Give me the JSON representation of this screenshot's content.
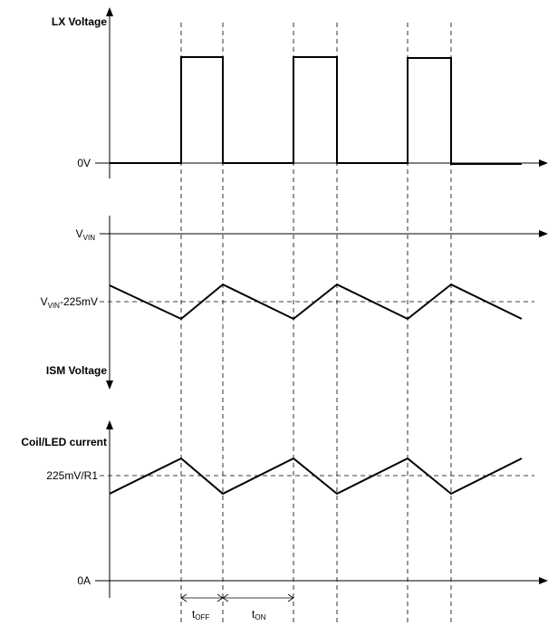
{
  "lx_panel": {
    "title": "LX Voltage",
    "zero_label": "0V"
  },
  "ism_panel": {
    "vin_label": "V",
    "vin_sub": "VIN",
    "threshold_label_pre": "V",
    "threshold_label_sub": "VIN",
    "threshold_label_post": "-225mV",
    "title": "ISM Voltage"
  },
  "coil_panel": {
    "title": "Coil/LED current",
    "threshold_label": "225mV/R1",
    "zero_label": "0A"
  },
  "timing": {
    "toff_main": "t",
    "toff_sub": "OFF",
    "ton_main": "t",
    "ton_sub": "ON"
  }
}
